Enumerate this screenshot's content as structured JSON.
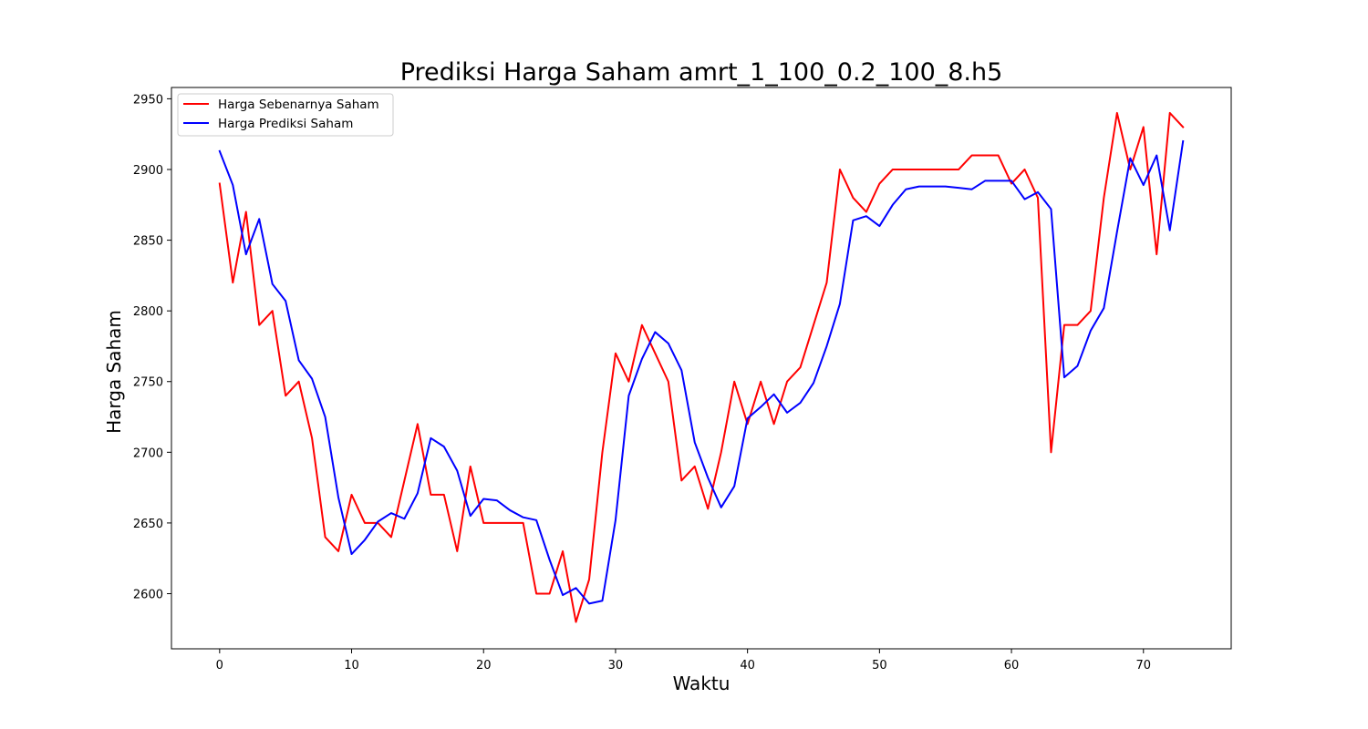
{
  "chart_data": {
    "type": "line",
    "title": "Prediksi Harga Saham amrt_1_100_0.2_100_8.h5",
    "xlabel": "Waktu",
    "ylabel": "Harga Saham",
    "xlim": [
      -3.65,
      76.65
    ],
    "ylim": [
      2561,
      2958
    ],
    "xticks": [
      0,
      10,
      20,
      30,
      40,
      50,
      60,
      70
    ],
    "yticks": [
      2600,
      2650,
      2700,
      2750,
      2800,
      2850,
      2900,
      2950
    ],
    "grid": false,
    "legend_position": "top-left",
    "x": [
      0,
      1,
      2,
      3,
      4,
      5,
      6,
      7,
      8,
      9,
      10,
      11,
      12,
      13,
      14,
      15,
      16,
      17,
      18,
      19,
      20,
      21,
      22,
      23,
      24,
      25,
      26,
      27,
      28,
      29,
      30,
      31,
      32,
      33,
      34,
      35,
      36,
      37,
      38,
      39,
      40,
      41,
      42,
      43,
      44,
      45,
      46,
      47,
      48,
      49,
      50,
      51,
      52,
      53,
      54,
      55,
      56,
      57,
      58,
      59,
      60,
      61,
      62,
      63,
      64,
      65,
      66,
      67,
      68,
      69,
      70,
      71,
      72,
      73
    ],
    "series": [
      {
        "name": "Harga Sebenarnya Saham",
        "color": "#ff0000",
        "values": [
          2890,
          2820,
          2870,
          2790,
          2800,
          2740,
          2750,
          2710,
          2640,
          2630,
          2670,
          2650,
          2650,
          2640,
          2680,
          2720,
          2670,
          2670,
          2630,
          2690,
          2650,
          2650,
          2650,
          2650,
          2600,
          2600,
          2630,
          2580,
          2610,
          2700,
          2770,
          2750,
          2790,
          2770,
          2750,
          2680,
          2690,
          2660,
          2700,
          2750,
          2720,
          2750,
          2720,
          2750,
          2760,
          2790,
          2820,
          2900,
          2880,
          2870,
          2890,
          2900,
          2900,
          2900,
          2900,
          2900,
          2900,
          2910,
          2910,
          2910,
          2890,
          2900,
          2880,
          2700,
          2790,
          2790,
          2800,
          2880,
          2940,
          2900,
          2930,
          2840,
          2940,
          2930
        ]
      },
      {
        "name": "Harga Prediksi Saham",
        "color": "#0000ff",
        "values": [
          2913,
          2889,
          2840,
          2865,
          2819,
          2807,
          2765,
          2752,
          2725,
          2668,
          2628,
          2638,
          2651,
          2657,
          2653,
          2671,
          2710,
          2704,
          2687,
          2655,
          2667,
          2666,
          2659,
          2654,
          2652,
          2624,
          2599,
          2604,
          2593,
          2595,
          2652,
          2740,
          2766,
          2785,
          2777,
          2758,
          2707,
          2682,
          2661,
          2676,
          2724,
          2732,
          2741,
          2728,
          2735,
          2749,
          2775,
          2805,
          2864,
          2867,
          2860,
          2875,
          2886,
          2888,
          2888,
          2888,
          2887,
          2886,
          2892,
          2892,
          2892,
          2879,
          2884,
          2872,
          2753,
          2761,
          2786,
          2802,
          2856,
          2908,
          2889,
          2910,
          2857,
          2920
        ]
      }
    ]
  }
}
